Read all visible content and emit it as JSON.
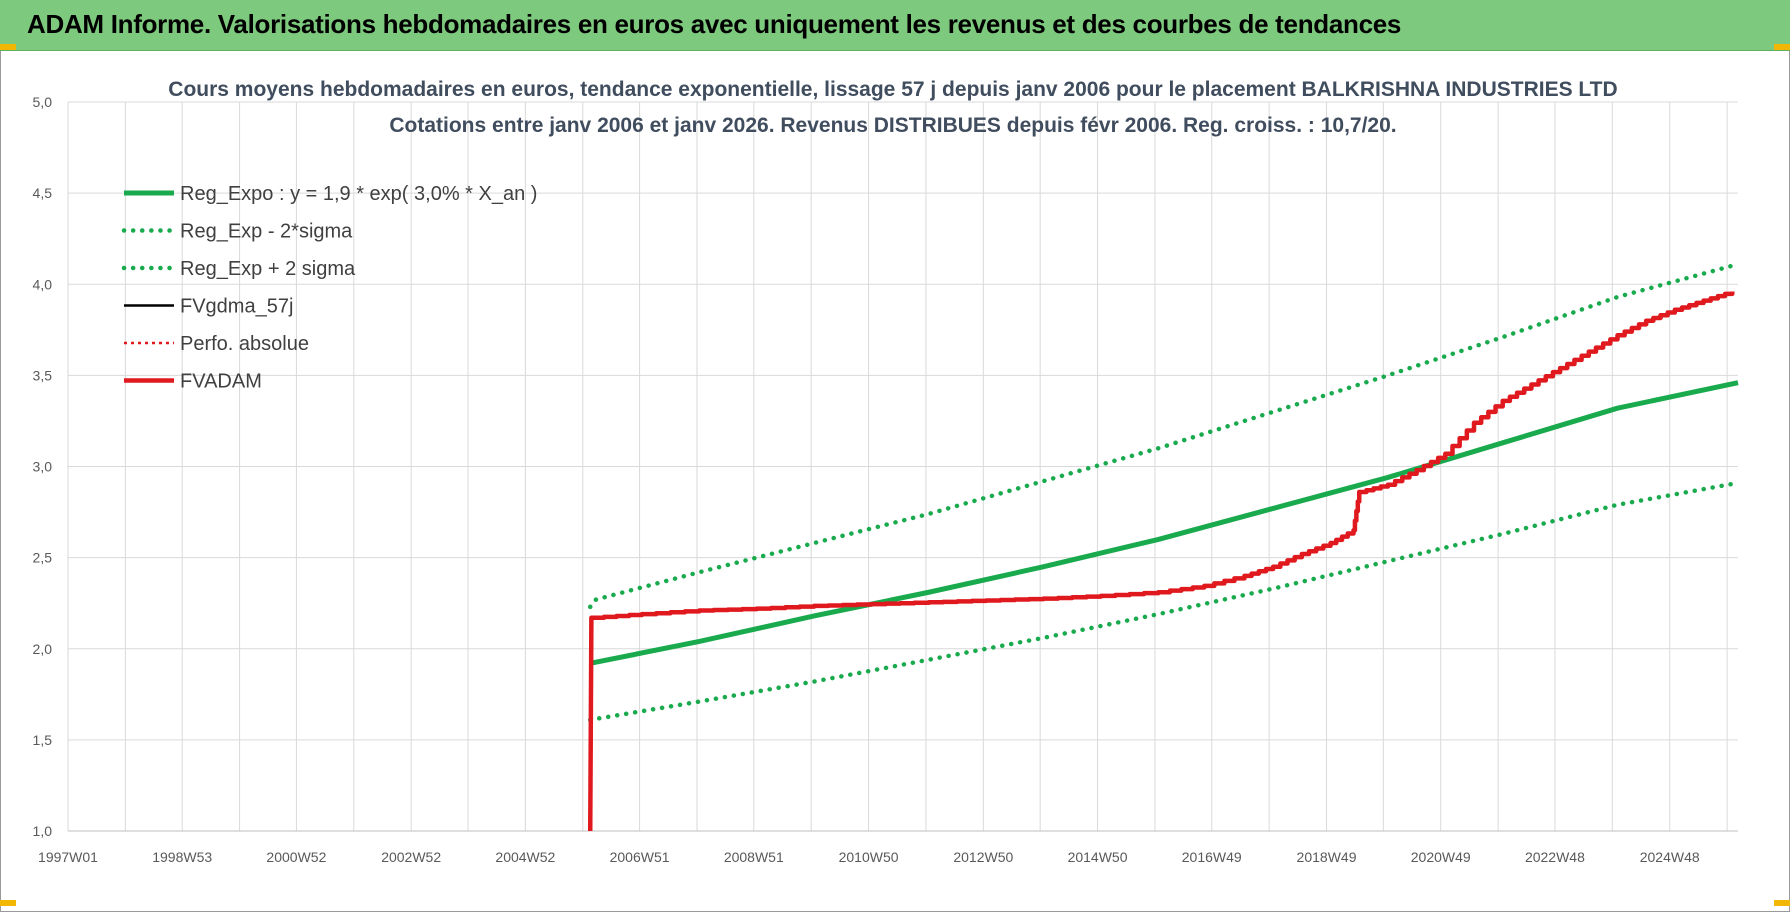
{
  "banner": {
    "title": "ADAM Informe. Valorisations hebdomadaires en euros avec uniquement les revenus et des courbes de tendances"
  },
  "colors": {
    "banner_bg": "#7dc97d",
    "green": "#1aaa4e",
    "black": "#000000",
    "red": "#e0191e",
    "grid": "#d9d9d9"
  },
  "chart_data": {
    "type": "line",
    "title": "Cours moyens hebdomadaires en euros, tendance exponentielle, lissage 57 j depuis janv 2006 pour le placement BALKRISHNA INDUSTRIES LTD",
    "subtitle": "Cotations entre janv 2006 et janv 2026. Revenus DISTRIBUES depuis févr 2006. Reg. croiss. : 10,7/20.",
    "xlabel": "",
    "ylabel": "",
    "xlim": [
      1997.0,
      2026.1
    ],
    "ylim": [
      1.0,
      5.0
    ],
    "grid": true,
    "legend_position": "top-left",
    "x_ticks": [
      {
        "x": 1997.0,
        "label": "1997W01"
      },
      {
        "x": 1998.99,
        "label": "1998W53"
      },
      {
        "x": 2000.98,
        "label": "2000W52"
      },
      {
        "x": 2002.98,
        "label": "2002W52"
      },
      {
        "x": 2004.97,
        "label": "2004W52"
      },
      {
        "x": 2006.96,
        "label": "2006W51"
      },
      {
        "x": 2008.95,
        "label": "2008W51"
      },
      {
        "x": 2010.95,
        "label": "2010W50"
      },
      {
        "x": 2012.95,
        "label": "2012W50"
      },
      {
        "x": 2014.94,
        "label": "2014W50"
      },
      {
        "x": 2016.93,
        "label": "2016W49"
      },
      {
        "x": 2018.93,
        "label": "2018W49"
      },
      {
        "x": 2020.92,
        "label": "2020W49"
      },
      {
        "x": 2022.91,
        "label": "2022W48"
      },
      {
        "x": 2024.91,
        "label": "2024W48"
      }
    ],
    "x_minor_ticks": [
      1997.0,
      1998.0,
      1998.99,
      1999.99,
      2000.98,
      2001.98,
      2002.98,
      2003.97,
      2004.97,
      2005.97,
      2006.96,
      2007.96,
      2008.95,
      2009.95,
      2010.95,
      2011.95,
      2012.95,
      2013.94,
      2014.94,
      2015.94,
      2016.93,
      2017.93,
      2018.93,
      2019.92,
      2020.92,
      2021.92,
      2022.91,
      2023.91,
      2024.91,
      2025.91
    ],
    "y_ticks": [
      {
        "y": 1.0,
        "label": "1,0"
      },
      {
        "y": 1.5,
        "label": "1,5"
      },
      {
        "y": 2.0,
        "label": "2,0"
      },
      {
        "y": 2.5,
        "label": "2,5"
      },
      {
        "y": 3.0,
        "label": "3,0"
      },
      {
        "y": 3.5,
        "label": "3,5"
      },
      {
        "y": 4.0,
        "label": "4,0"
      },
      {
        "y": 4.5,
        "label": "4,5"
      },
      {
        "y": 5.0,
        "label": "5,0"
      }
    ],
    "series": [
      {
        "name": "Reg_Expo : y = 1,9 * exp( 3,0% *  X_an )",
        "style": "solid",
        "color": "#1aaa4e",
        "x": [
          2006.1,
          2008,
          2010,
          2012,
          2014,
          2016,
          2018,
          2020,
          2022,
          2024,
          2026.1
        ],
        "y": [
          1.92,
          2.04,
          2.18,
          2.31,
          2.45,
          2.6,
          2.77,
          2.94,
          3.13,
          3.32,
          3.46
        ]
      },
      {
        "name": "Reg_Exp - 2*sigma",
        "style": "dotted",
        "color": "#1aaa4e",
        "x": [
          2006.1,
          2008,
          2010,
          2012,
          2014,
          2016,
          2018,
          2020,
          2022,
          2024,
          2026.1
        ],
        "y": [
          1.61,
          1.71,
          1.82,
          1.94,
          2.06,
          2.19,
          2.33,
          2.48,
          2.63,
          2.79,
          2.91
        ]
      },
      {
        "name": "Reg_Exp + 2 sigma",
        "style": "dotted",
        "color": "#1aaa4e",
        "x": [
          2006.1,
          2006.2,
          2008,
          2010,
          2012,
          2014,
          2016,
          2018,
          2020,
          2022,
          2024,
          2026.1
        ],
        "y": [
          2.23,
          2.27,
          2.42,
          2.58,
          2.74,
          2.92,
          3.1,
          3.3,
          3.5,
          3.71,
          3.93,
          4.11
        ]
      },
      {
        "name": "FVgdma_57j",
        "style": "solid",
        "color": "#000000",
        "x": [
          2006.1,
          2006.12,
          2007,
          2008,
          2009,
          2010,
          2011,
          2012,
          2013,
          2014,
          2015,
          2016,
          2016.8,
          2017.5,
          2018,
          2018.5,
          2019,
          2019.4,
          2019.5,
          2020,
          2020.5,
          2021,
          2021.5,
          2022,
          2022.5,
          2023,
          2023.5,
          2024,
          2024.5,
          2025,
          2025.5,
          2026.0
        ],
        "y": [
          1.0,
          2.17,
          2.19,
          2.21,
          2.22,
          2.235,
          2.245,
          2.255,
          2.265,
          2.275,
          2.29,
          2.31,
          2.345,
          2.4,
          2.45,
          2.52,
          2.58,
          2.65,
          2.86,
          2.9,
          2.98,
          3.07,
          3.24,
          3.36,
          3.45,
          3.54,
          3.63,
          3.72,
          3.8,
          3.86,
          3.91,
          3.96
        ]
      },
      {
        "name": "Perfo. absolue",
        "style": "dotted",
        "color": "#e0191e",
        "x": [
          2006.1,
          2006.12,
          2007,
          2008,
          2009,
          2010,
          2011,
          2012,
          2013,
          2014,
          2015,
          2016,
          2016.8,
          2017.5,
          2018,
          2018.5,
          2019,
          2019.4,
          2019.5,
          2020,
          2020.5,
          2021,
          2021.5,
          2022,
          2022.5,
          2023,
          2023.5,
          2024,
          2024.5,
          2025,
          2025.5,
          2026.0
        ],
        "y": [
          1.0,
          2.17,
          2.19,
          2.21,
          2.22,
          2.235,
          2.245,
          2.255,
          2.265,
          2.275,
          2.29,
          2.31,
          2.345,
          2.4,
          2.45,
          2.52,
          2.58,
          2.65,
          2.86,
          2.9,
          2.98,
          3.07,
          3.24,
          3.36,
          3.45,
          3.54,
          3.63,
          3.72,
          3.8,
          3.86,
          3.91,
          3.96
        ]
      },
      {
        "name": "FVADAM",
        "style": "solid",
        "color": "#e0191e",
        "x": [
          2006.1,
          2006.12,
          2007,
          2008,
          2009,
          2010,
          2011,
          2012,
          2013,
          2014,
          2015,
          2016,
          2016.8,
          2017.5,
          2018,
          2018.5,
          2019,
          2019.4,
          2019.5,
          2020,
          2020.5,
          2021,
          2021.5,
          2022,
          2022.5,
          2023,
          2023.5,
          2024,
          2024.5,
          2025,
          2025.5,
          2026.0
        ],
        "y": [
          1.0,
          2.17,
          2.19,
          2.21,
          2.22,
          2.235,
          2.245,
          2.255,
          2.265,
          2.275,
          2.29,
          2.31,
          2.345,
          2.4,
          2.45,
          2.52,
          2.58,
          2.65,
          2.86,
          2.9,
          2.98,
          3.07,
          3.24,
          3.36,
          3.45,
          3.54,
          3.63,
          3.72,
          3.8,
          3.86,
          3.91,
          3.96
        ]
      }
    ]
  }
}
